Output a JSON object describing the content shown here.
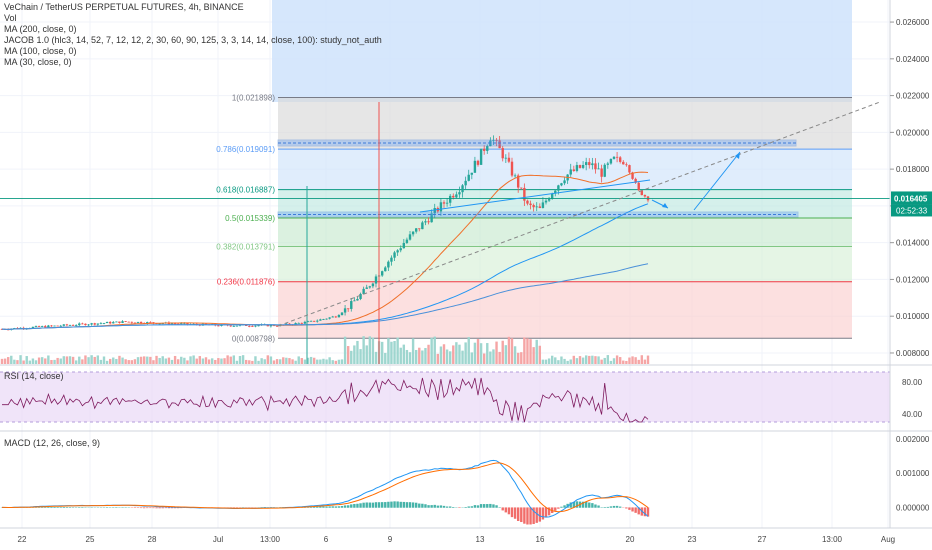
{
  "header": {
    "symbol_line": "VeChain / TetherUS PERPETUAL FUTURES, 4h, BINANCE",
    "indicators": [
      "Vol",
      "MA (200, close, 0)",
      "JACOB 1.0  (hlc3, 14, 52, 7, 12, 12, 2, 30, 60, 90, 125, 3, 3, 14, 14, close, 100): study_not_auth",
      "MA (100, close, 0)",
      "MA (30, close, 0)"
    ]
  },
  "price_axis": {
    "ticks": [
      "0.026000",
      "0.024000",
      "0.022000",
      "0.020000",
      "0.018000",
      "0.016000",
      "0.014000",
      "0.012000",
      "0.010000",
      "0.008000"
    ],
    "last_price": "0.016405",
    "countdown": "02:52:33"
  },
  "fib_levels": [
    {
      "label": "1(0.021898)",
      "value": 0.021898,
      "color": "#787b86"
    },
    {
      "label": "0.786(0.019091)",
      "value": 0.019091,
      "color": "#5b9cf6"
    },
    {
      "label": "0.618(0.016887)",
      "value": 0.016887,
      "color": "#089981"
    },
    {
      "label": "0.5(0.015339)",
      "value": 0.015339,
      "color": "#4caf50"
    },
    {
      "label": "0.382(0.013791)",
      "value": 0.013791,
      "color": "#81c784"
    },
    {
      "label": "0.236(0.011876)",
      "value": 0.011876,
      "color": "#f23645"
    },
    {
      "label": "0(0.008798)",
      "value": 0.008798,
      "color": "#787b86"
    }
  ],
  "rsi": {
    "label": "RSI (14, close)",
    "ticks": [
      "80.00",
      "40.00"
    ]
  },
  "macd": {
    "label": "MACD (12, 26, close, 9)",
    "ticks": [
      "0.002000",
      "0.001000",
      "0.000000"
    ]
  },
  "time_axis": {
    "labels": [
      "22",
      "25",
      "28",
      "Jul",
      "13:00",
      "6",
      "9",
      "13",
      "16",
      "20",
      "23",
      "27",
      "13:00",
      "Aug"
    ]
  },
  "chart_data": {
    "type": "candlestick",
    "price_range": [
      0.0074,
      0.0272
    ],
    "rsi_range": [
      20,
      100
    ],
    "macd_range": [
      -0.0006,
      0.0022
    ],
    "colors": {
      "up": "#26a69a",
      "down": "#ef5350",
      "ma30": "#f0702a",
      "ma100": "#2196f3",
      "ma200": "#4a90d9",
      "fib_zone_blue": "#cfe3fb",
      "rsi_line": "#7e1a5e",
      "macd_line": "#2196f3",
      "signal_line": "#ff6d00"
    }
  }
}
